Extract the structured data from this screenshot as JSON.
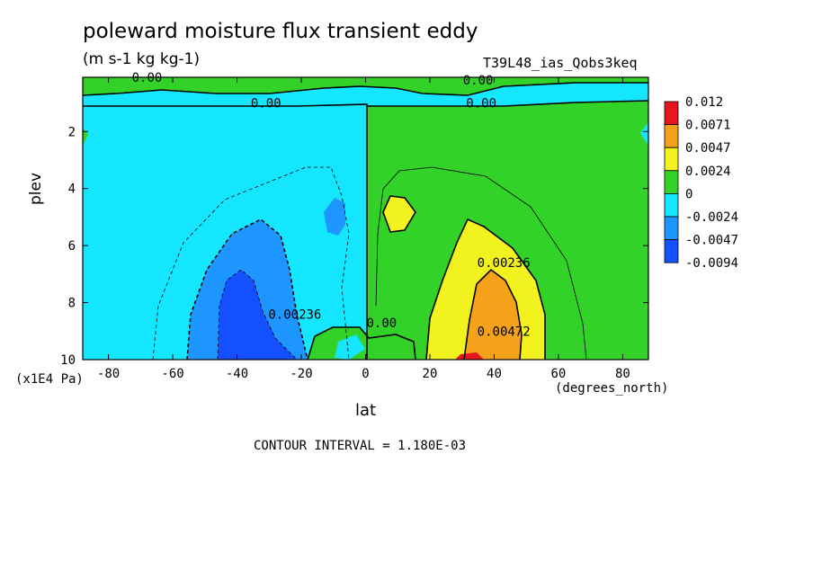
{
  "chart_data": {
    "type": "heatmap",
    "title": "poleward moisture flux transient eddy",
    "units": "(m s-1 kg kg-1)",
    "run_label": "T39L48_ias_Qobs3keq",
    "xlabel": "lat",
    "ylabel": "plev",
    "x_unit": "(degrees_north)",
    "y_unit": "(x1E4 Pa)",
    "xlim": [
      -88,
      88
    ],
    "ylim": [
      10,
      0.1
    ],
    "x_ticks": [
      -80,
      -60,
      -40,
      -20,
      0,
      20,
      40,
      60,
      80
    ],
    "y_ticks": [
      2,
      4,
      6,
      8,
      10
    ],
    "footer": "CONTOUR INTERVAL = 1.180E-03",
    "colorbar": {
      "labels": [
        "0.012",
        "0.0071",
        "0.0047",
        "0.0024",
        "0",
        "-0.0024",
        "-0.0047",
        "-0.0094"
      ],
      "colors": [
        "#e8141e",
        "#f5a21b",
        "#f2f21e",
        "#32d228",
        "#14e6ff",
        "#1e96ff",
        "#1450ff"
      ]
    },
    "contour_labels": [
      {
        "text": "0.00",
        "x": -68,
        "y": 0.1
      },
      {
        "text": "0.00",
        "x": -31,
        "y": 1.0
      },
      {
        "text": "0.00",
        "x": 35,
        "y": 0.2
      },
      {
        "text": "0.00",
        "x": 36,
        "y": 1.0
      },
      {
        "text": "0.00236",
        "x": 43,
        "y": 6.6
      },
      {
        "text": "0.00472",
        "x": 43,
        "y": 9.0
      },
      {
        "text": "0.00236",
        "x": -22,
        "y": 8.4
      },
      {
        "text": "0.00",
        "x": 5,
        "y": 8.7
      }
    ]
  }
}
